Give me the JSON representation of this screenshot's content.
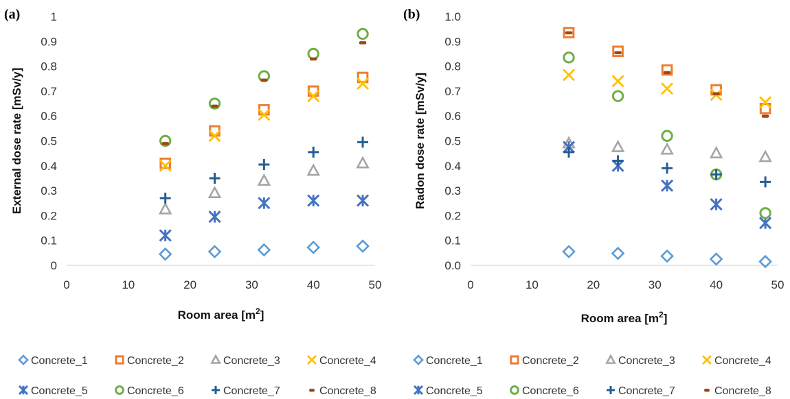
{
  "chart_data": [
    {
      "type": "scatter",
      "panel_label": "(a)",
      "title": "",
      "xlabel": "Room area [m",
      "xlabel_sup": "2",
      "xlabel_end": "]",
      "ylabel": "External dose rate [mSv/y]",
      "xlim": [
        0,
        50
      ],
      "ylim": [
        0,
        1
      ],
      "xticks": [
        "0",
        "10",
        "20",
        "30",
        "40",
        "50"
      ],
      "yticks": [
        "0",
        "0.1",
        "0.2",
        "0.3",
        "0.4",
        "0.5",
        "0.6",
        "0.7",
        "0.8",
        "0.9",
        "1"
      ],
      "grid": false,
      "legend": "bottom",
      "x": [
        16,
        24,
        32,
        40,
        48
      ],
      "series": [
        {
          "name": "Concrete_1",
          "values": [
            0.045,
            0.055,
            0.062,
            0.072,
            0.077
          ]
        },
        {
          "name": "Concrete_2",
          "values": [
            0.41,
            0.54,
            0.625,
            0.7,
            0.755
          ]
        },
        {
          "name": "Concrete_3",
          "values": [
            0.225,
            0.29,
            0.34,
            0.38,
            0.41
          ]
        },
        {
          "name": "Concrete_4",
          "values": [
            0.4,
            0.52,
            0.605,
            0.68,
            0.73
          ]
        },
        {
          "name": "Concrete_5",
          "values": [
            0.12,
            0.195,
            0.25,
            0.26,
            0.26
          ]
        },
        {
          "name": "Concrete_6",
          "values": [
            0.5,
            0.65,
            0.76,
            0.85,
            0.93
          ]
        },
        {
          "name": "Concrete_7",
          "values": [
            0.27,
            0.35,
            0.405,
            0.455,
            0.495
          ]
        },
        {
          "name": "Concrete_8",
          "values": [
            0.49,
            0.64,
            0.745,
            0.83,
            0.895
          ]
        }
      ]
    },
    {
      "type": "scatter",
      "panel_label": "(b)",
      "title": "",
      "xlabel": "Room area [m",
      "xlabel_sup": "2",
      "xlabel_end": "]",
      "ylabel": "Radon dose rate [mSv/y]",
      "xlim": [
        0,
        50
      ],
      "ylim": [
        0,
        1
      ],
      "xticks": [
        "0",
        "10",
        "20",
        "30",
        "40",
        "50"
      ],
      "yticks": [
        "0.0",
        "0.1",
        "0.2",
        "0.3",
        "0.4",
        "0.5",
        "0.6",
        "0.7",
        "0.8",
        "0.9",
        "1.0"
      ],
      "grid": false,
      "legend": "bottom",
      "x": [
        16,
        24,
        32,
        40,
        48
      ],
      "series": [
        {
          "name": "Concrete_1",
          "values": [
            0.055,
            0.048,
            0.037,
            0.025,
            0.015
          ]
        },
        {
          "name": "Concrete_2",
          "values": [
            0.935,
            0.86,
            0.785,
            0.705,
            0.63
          ]
        },
        {
          "name": "Concrete_3",
          "values": [
            0.49,
            0.475,
            0.465,
            0.45,
            0.435
          ]
        },
        {
          "name": "Concrete_4",
          "values": [
            0.765,
            0.74,
            0.71,
            0.685,
            0.655
          ]
        },
        {
          "name": "Concrete_5",
          "values": [
            0.475,
            0.4,
            0.32,
            0.245,
            0.17
          ]
        },
        {
          "name": "Concrete_6",
          "values": [
            0.835,
            0.68,
            0.52,
            0.365,
            0.21
          ]
        },
        {
          "name": "Concrete_7",
          "values": [
            0.455,
            0.42,
            0.39,
            0.365,
            0.335
          ]
        },
        {
          "name": "Concrete_8",
          "values": [
            0.935,
            0.855,
            0.775,
            0.69,
            0.6
          ]
        }
      ]
    }
  ],
  "series_styles": [
    {
      "marker": "diamond",
      "color": "#5b9bd5"
    },
    {
      "marker": "square",
      "color": "#ed7d31"
    },
    {
      "marker": "triangle",
      "color": "#a5a5a5"
    },
    {
      "marker": "x",
      "color": "#ffc000"
    },
    {
      "marker": "asterisk",
      "color": "#4472c4"
    },
    {
      "marker": "circle",
      "color": "#70ad47"
    },
    {
      "marker": "plus",
      "color": "#255e91"
    },
    {
      "marker": "dash",
      "color": "#9e480e"
    }
  ]
}
